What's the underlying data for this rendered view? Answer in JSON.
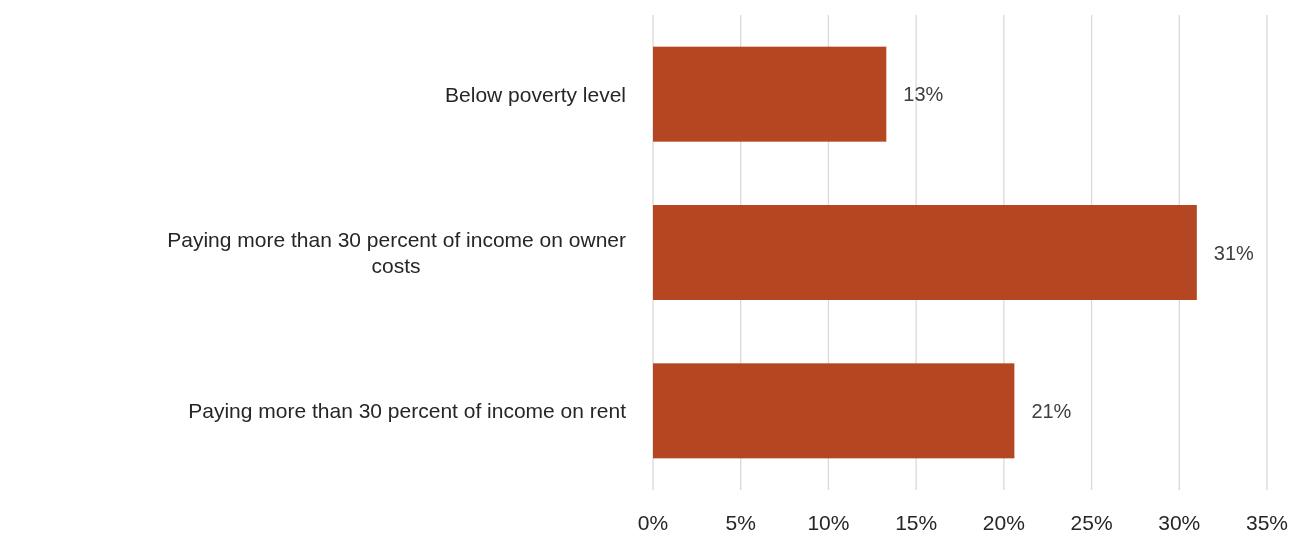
{
  "chart_data": {
    "type": "bar",
    "orientation": "horizontal",
    "categories": [
      "Below poverty level",
      "Paying more than 30 percent of income on owner costs",
      "Paying more than 30 percent of income on rent"
    ],
    "values": [
      13.3,
      31.0,
      20.6
    ],
    "value_labels": [
      "13%",
      "31%",
      "21%"
    ],
    "color": "#b54622",
    "grid": "x",
    "xlim": [
      0,
      35
    ],
    "xticks": [
      {
        "value": 0,
        "label": "0%"
      },
      {
        "value": 5,
        "label": "5%"
      },
      {
        "value": 10,
        "label": "10%"
      },
      {
        "value": 15,
        "label": "15%"
      },
      {
        "value": 20,
        "label": "20%"
      },
      {
        "value": 25,
        "label": "25%"
      },
      {
        "value": 30,
        "label": "30%"
      },
      {
        "value": 35,
        "label": "35%"
      }
    ]
  }
}
